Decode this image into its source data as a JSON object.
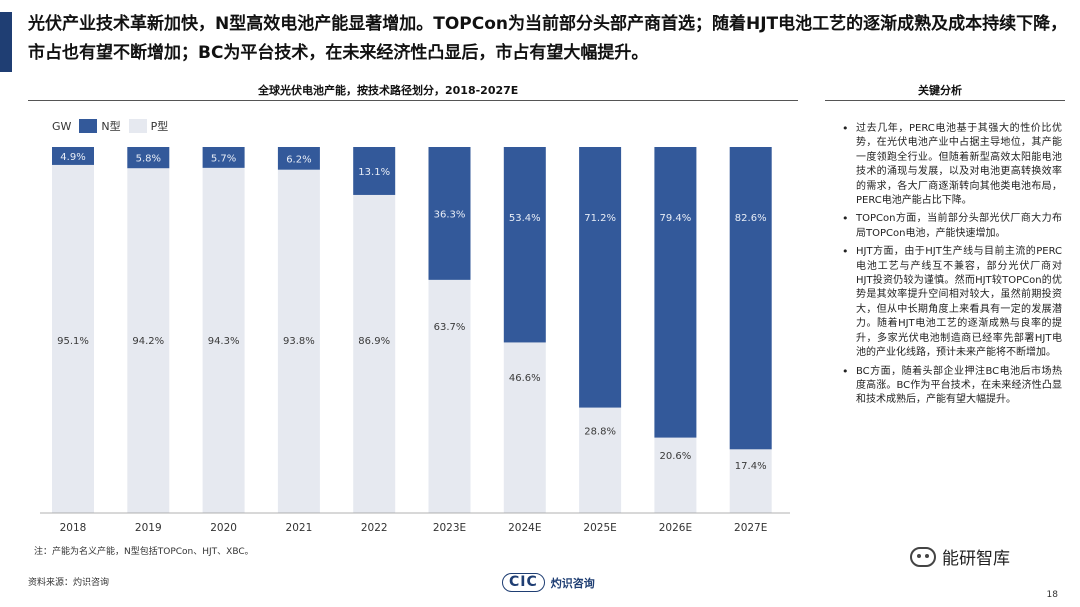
{
  "headline": "光伏产业技术革新加快，N型高效电池产能显著增加。TOPCon为当前部分头部产商首选；随着HJT电池工艺的逐渐成熟及成本持续下降，市占也有望不断增加；BC为平台技术，在未来经济性凸显后，市占有望大幅提升。",
  "chart_title": "全球光伏电池产能，按技术路径划分，2018-2027E",
  "analysis_title": "关键分析",
  "legend": {
    "unit": "GW",
    "n_label": "N型",
    "p_label": "P型"
  },
  "colors": {
    "n_type": "#33599a",
    "p_type": "#e6e9f0",
    "accent": "#1f3e73"
  },
  "chart_data": {
    "type": "bar",
    "stacked": true,
    "normalized_percent": true,
    "categories": [
      "2018",
      "2019",
      "2020",
      "2021",
      "2022",
      "2023E",
      "2024E",
      "2025E",
      "2026E",
      "2027E"
    ],
    "series": [
      {
        "name": "P型",
        "values": [
          95.1,
          94.2,
          94.3,
          93.8,
          86.9,
          63.7,
          46.6,
          28.8,
          20.6,
          17.4
        ]
      },
      {
        "name": "N型",
        "values": [
          4.9,
          5.8,
          5.7,
          6.2,
          13.1,
          36.3,
          53.4,
          71.2,
          79.4,
          82.6
        ]
      }
    ],
    "ylim": [
      0,
      100
    ],
    "value_suffix": "%"
  },
  "note": "注：产能为名义产能，N型包括TOPCon、HJT、XBC。",
  "source": "资料来源：灼识咨询",
  "footer_logo": {
    "mark": "CIC",
    "name": "灼识咨询"
  },
  "brand": "能研智库",
  "page_number": "18",
  "analysis": [
    "过去几年，PERC电池基于其强大的性价比优势，在光伏电池产业中占据主导地位，其产能一度领跑全行业。但随着新型高效太阳能电池技术的涌现与发展，以及对电池更高转换效率的需求，各大厂商逐渐转向其他类电池布局，PERC电池产能占比下降。",
    "TOPCon方面，当前部分头部光伏厂商大力布局TOPCon电池，产能快速增加。",
    "HJT方面，由于HJT生产线与目前主流的PERC电池工艺与产线互不兼容，部分光伏厂商对HJT投资仍较为谨慎。然而HJT较TOPCon的优势是其效率提升空间相对较大，虽然前期投资大，但从中长期角度上来看具有一定的发展潜力。随着HJT电池工艺的逐渐成熟与良率的提升，多家光伏电池制造商已经率先部署HJT电池的产业化线路，预计未来产能将不断增加。",
    "BC方面，随着头部企业押注BC电池后市场热度高涨。BC作为平台技术，在未来经济性凸显和技术成熟后，产能有望大幅提升。"
  ]
}
